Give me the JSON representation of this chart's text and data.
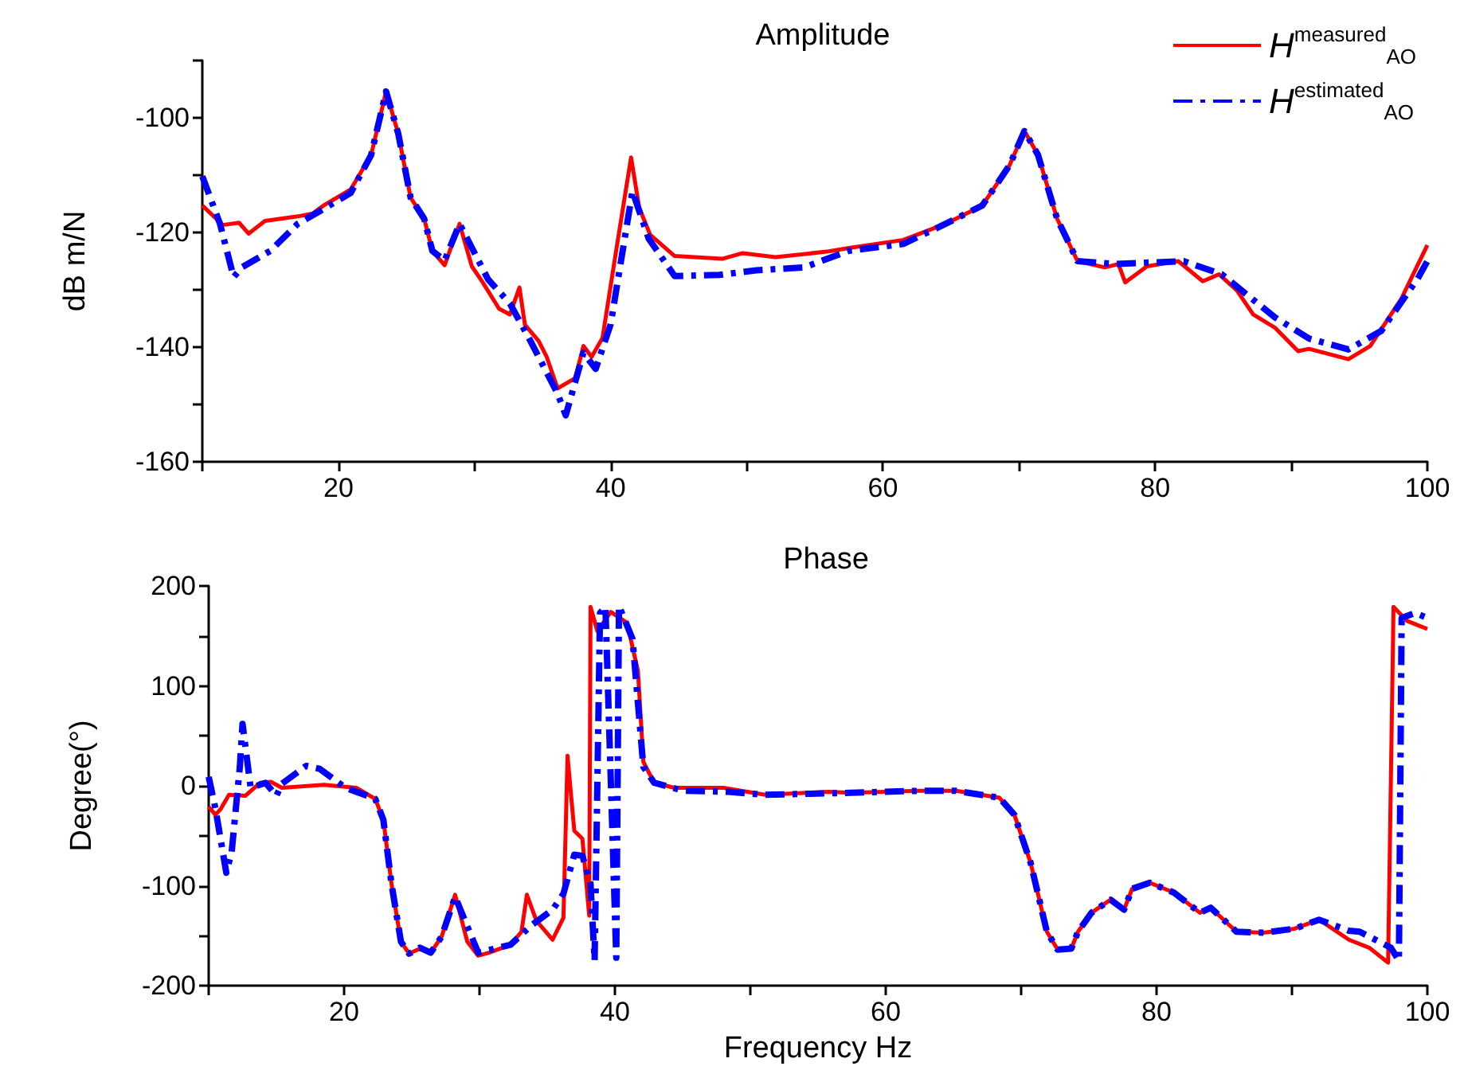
{
  "chart_data": [
    {
      "type": "line",
      "title": "Amplitude",
      "ylabel": "dB m/N",
      "xlim": [
        10,
        100
      ],
      "xticks": [
        {
          "value": 10,
          "label": null
        },
        20,
        {
          "value": 30,
          "label": null
        },
        40,
        {
          "value": 50,
          "label": null
        },
        60,
        {
          "value": 70,
          "label": null
        },
        80,
        {
          "value": 90,
          "label": null
        },
        100
      ],
      "ylim": [
        -160,
        -90
      ],
      "yticks": [
        -160,
        {
          "value": -150,
          "label": null
        },
        -140,
        {
          "value": -130,
          "label": null
        },
        -120,
        {
          "value": -110,
          "label": null
        },
        -100,
        {
          "value": -90,
          "label": null
        }
      ],
      "grid": false,
      "legend": "top right",
      "series": [
        {
          "name": "H$^{measured}$$_{AO}$",
          "color": "#ff0000",
          "line_style": "solid",
          "x": [
            10,
            11.5,
            12.7,
            13.4,
            14.6,
            17,
            18.1,
            18.9,
            20.9,
            22.4,
            23.5,
            24.4,
            25.3,
            26.3,
            26.9,
            27.8,
            28.9,
            29.8,
            30.6,
            31.8,
            32.6,
            33.3,
            33.7,
            34.7,
            35.3,
            36.1,
            37.4,
            38,
            38.6,
            39.4,
            40.4,
            41.5,
            42.1,
            42.9,
            44.7,
            48.2,
            49.7,
            52.1,
            56,
            57.5,
            61.5,
            64.6,
            67.3,
            69.3,
            70.4,
            71.4,
            72.8,
            74.3,
            76.3,
            77.3,
            77.8,
            79.4,
            81.7,
            83.5,
            84.7,
            86,
            87.2,
            88.8,
            90.5,
            91.3,
            94.2,
            95.8,
            98.1,
            100
          ],
          "values": [
            -115.3,
            -118.7,
            -118.3,
            -120.2,
            -118,
            -117.2,
            -116.7,
            -115.3,
            -112.5,
            -106.5,
            -95.4,
            -102.8,
            -113.9,
            -117.6,
            -123.2,
            -125.7,
            -118.5,
            -125.9,
            -128.7,
            -133.3,
            -134.3,
            -129.6,
            -136.1,
            -138.9,
            -141.7,
            -147.2,
            -145.4,
            -139.8,
            -141.7,
            -138.4,
            -123.2,
            -106.9,
            -115.7,
            -120.4,
            -124.1,
            -124.6,
            -123.6,
            -124.3,
            -123.3,
            -122.7,
            -121.3,
            -118.5,
            -115.3,
            -108.3,
            -102.3,
            -106.5,
            -117.6,
            -125,
            -126.1,
            -125.5,
            -128.7,
            -125.9,
            -125,
            -128.5,
            -127.3,
            -130.1,
            -134.3,
            -136.6,
            -140.7,
            -140.3,
            -142.1,
            -139.8,
            -131.5,
            -122.2
          ]
        },
        {
          "name": "H$^{estimated}$$_{AO}$",
          "color": "#0000ff",
          "line_style": "dashed",
          "x": [
            10,
            11.3,
            12.3,
            12.9,
            15,
            17,
            18.9,
            20.9,
            22.4,
            23.5,
            24.4,
            25.3,
            26.3,
            26.9,
            27.8,
            28.9,
            31,
            32.6,
            34.1,
            36.1,
            36.7,
            38,
            38.9,
            40,
            41.6,
            42.8,
            44.7,
            48,
            50.7,
            54.2,
            57.5,
            61.5,
            64.6,
            67.3,
            69.3,
            70.4,
            71.4,
            72.8,
            74.3,
            77.1,
            82.1,
            84.9,
            88.8,
            91.3,
            94.2,
            96.6,
            99.3,
            100
          ],
          "values": [
            -110.2,
            -118.5,
            -127.8,
            -126.1,
            -123.2,
            -118.5,
            -115.9,
            -113.1,
            -106.5,
            -95.4,
            -102.8,
            -113.9,
            -117.6,
            -123.2,
            -124.9,
            -118.5,
            -128.2,
            -132.4,
            -138.9,
            -148.1,
            -151.9,
            -141,
            -143.8,
            -136,
            -112.8,
            -121.1,
            -127.6,
            -127.4,
            -126.6,
            -126.1,
            -123.2,
            -122,
            -118.5,
            -115.3,
            -108.3,
            -102.3,
            -106.5,
            -117.6,
            -125,
            -125.5,
            -125,
            -127.3,
            -134.8,
            -138.5,
            -140.4,
            -137.2,
            -128,
            -125
          ]
        }
      ]
    },
    {
      "type": "line",
      "title": "Phase",
      "xlabel": "Frequency Hz",
      "ylabel": "Degree(°)",
      "xlim": [
        10,
        100
      ],
      "xticks": [
        {
          "value": 10,
          "label": null
        },
        20,
        {
          "value": 30,
          "label": null
        },
        40,
        {
          "value": 50,
          "label": null
        },
        60,
        {
          "value": 70,
          "label": null
        },
        80,
        {
          "value": 90,
          "label": null
        },
        100
      ],
      "ylim": [
        -200,
        200
      ],
      "yticks": [
        -200,
        {
          "value": -150,
          "label": null
        },
        -100,
        {
          "value": -50,
          "label": null
        },
        0,
        {
          "value": 50,
          "label": null
        },
        100,
        {
          "value": 150,
          "label": null
        },
        200
      ],
      "grid": false,
      "series": [
        {
          "color": "#ff0000",
          "line_style": "solid",
          "x": [
            10,
            10.5,
            10.9,
            11.5,
            12.7,
            13.8,
            14.6,
            15.4,
            18.5,
            20.9,
            22.3,
            22.9,
            23.5,
            24.2,
            24.8,
            25.6,
            26.4,
            27.2,
            28.2,
            29.1,
            29.9,
            30.7,
            32.3,
            33.1,
            33.5,
            34.2,
            35.4,
            36.2,
            36.5,
            37,
            37.6,
            38.1,
            38.2,
            38.7,
            39.7,
            40.9,
            41.7,
            42.1,
            42.9,
            44.4,
            48,
            51.1,
            55.8,
            57.4,
            62.5,
            65.2,
            68.4,
            69.5,
            70.7,
            71.9,
            72.7,
            73.7,
            74.2,
            75.2,
            76.6,
            77.6,
            78.2,
            79.5,
            81.3,
            83.2,
            84,
            85.9,
            87.9,
            90.2,
            92,
            94.2,
            95.7,
            97.1,
            97.5,
            98.5,
            100
          ],
          "values": [
            -21,
            -29,
            -23,
            -9,
            -10,
            3,
            4,
            -2,
            1,
            -2,
            -13,
            -34,
            -98,
            -156,
            -168,
            -163,
            -167,
            -151,
            -109,
            -156,
            -170,
            -167,
            -159,
            -146,
            -109,
            -135,
            -154,
            -132,
            30,
            -45,
            -53,
            -130,
            179,
            155,
            174,
            163,
            115,
            24,
            3,
            -2,
            -2,
            -9,
            -6,
            -7,
            -5,
            -5,
            -12,
            -29,
            -77,
            -146,
            -164,
            -163,
            -146,
            -127,
            -114,
            -124,
            -103,
            -97,
            -107,
            -127,
            -122,
            -146,
            -147,
            -143,
            -134,
            -154,
            -162,
            -177,
            179,
            165,
            157
          ]
        },
        {
          "color": "#0000ff",
          "line_style": "dashed",
          "x": [
            10,
            10.5,
            11.3,
            11.7,
            12.3,
            12.5,
            13.1,
            14.2,
            15,
            15.4,
            17.2,
            18.2,
            20.1,
            22.3,
            22.9,
            23.5,
            24.2,
            24.8,
            25.6,
            26.4,
            27.2,
            28.2,
            29.9,
            32.3,
            33.8,
            35.4,
            36.2,
            37,
            37.6,
            38.2,
            38.5,
            38.9,
            39.3,
            40.1,
            40.3,
            41.3,
            42.1,
            42.9,
            45.1,
            48.4,
            51.1,
            57.4,
            62.5,
            65.2,
            68.4,
            69.5,
            70.7,
            71.9,
            72.7,
            73.7,
            74.2,
            75.2,
            76.6,
            77.6,
            78.2,
            79.5,
            81.3,
            83.2,
            84,
            85.9,
            87.9,
            90.2,
            92,
            94.2,
            95,
            97.3,
            97.9,
            98.1,
            99.1,
            100
          ],
          "values": [
            9,
            -23,
            -87,
            -66,
            19,
            62,
            -2,
            3,
            -10,
            2,
            20,
            17,
            -2,
            -13,
            -34,
            -98,
            -156,
            -168,
            -162,
            -167,
            -151,
            -111,
            -167,
            -159,
            -140,
            -124,
            -108,
            -69,
            -70,
            -98,
            -175,
            173,
            179,
            -172,
            180,
            147,
            19,
            3,
            -5,
            -6,
            -9,
            -7,
            -5,
            -5,
            -12,
            -29,
            -77,
            -146,
            -164,
            -163,
            -146,
            -127,
            -114,
            -124,
            -103,
            -97,
            -107,
            -127,
            -122,
            -146,
            -147,
            -143,
            -134,
            -145,
            -146,
            -162,
            -175,
            168,
            173,
            168
          ]
        }
      ]
    }
  ]
}
